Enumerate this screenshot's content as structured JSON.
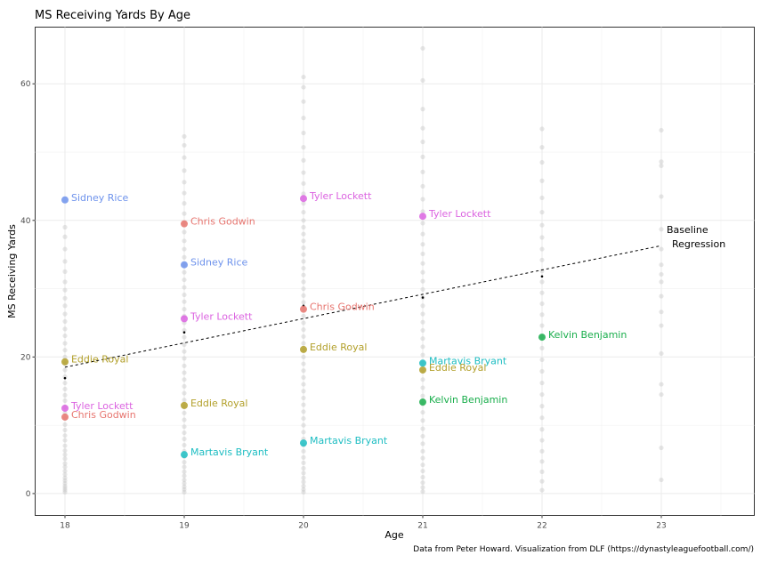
{
  "chart_data": {
    "type": "scatter",
    "title": "MS Receiving Yards By Age",
    "xlabel": "Age",
    "ylabel": "MS Receiving Yards",
    "caption": "Data from Peter Howard. Visualization from DLF (https://dynastyleaguefootball.com/)",
    "xlim": [
      17.75,
      23.78
    ],
    "ylim": [
      -3.2,
      68.3
    ],
    "x_ticks": [
      18,
      19,
      20,
      21,
      22,
      23
    ],
    "y_ticks": [
      0,
      20,
      40,
      60
    ],
    "grid": true,
    "background_population": {
      "color": "#c8c8c8",
      "points": [
        {
          "age": 18,
          "values": [
            0.2,
            0.5,
            0.8,
            1.1,
            1.5,
            1.9,
            2.3,
            2.8,
            3.3,
            3.9,
            4.4,
            5.1,
            5.7,
            6.3,
            7.0,
            7.8,
            8.5,
            9.3,
            10.1,
            11.0,
            11.8,
            12.7,
            13.6,
            14.4,
            15.3,
            16.2,
            17.1,
            18.1,
            19.0,
            20.0,
            21.0,
            22.0,
            23.1,
            24.1,
            25.2,
            26.3,
            27.5,
            28.6,
            29.8,
            31.0,
            32.5,
            34.0,
            35.8,
            37.6,
            39.0
          ]
        },
        {
          "age": 19,
          "values": [
            0.2,
            0.6,
            1.0,
            1.5,
            2.0,
            2.6,
            3.2,
            3.9,
            4.6,
            5.4,
            6.2,
            7.1,
            8.0,
            8.9,
            9.8,
            10.8,
            11.8,
            12.7,
            13.7,
            14.7,
            15.7,
            16.7,
            17.7,
            18.7,
            19.8,
            20.8,
            21.8,
            22.9,
            23.9,
            25.0,
            26.0,
            27.0,
            28.1,
            29.1,
            30.2,
            31.3,
            32.4,
            33.5,
            34.6,
            35.8,
            37.0,
            38.3,
            39.6,
            41.0,
            42.5,
            44.0,
            45.6,
            47.3,
            49.2,
            51.0,
            52.3
          ]
        },
        {
          "age": 20,
          "values": [
            0.2,
            0.6,
            1.1,
            1.7,
            2.3,
            3.0,
            3.7,
            4.5,
            5.3,
            6.2,
            7.1,
            8.0,
            9.0,
            10.0,
            11.0,
            12.0,
            13.0,
            14.0,
            15.0,
            16.0,
            17.0,
            18.0,
            19.0,
            20.0,
            21.0,
            22.0,
            23.0,
            24.0,
            25.0,
            26.0,
            27.0,
            28.0,
            29.0,
            30.0,
            31.0,
            32.0,
            33.0,
            34.0,
            35.0,
            36.0,
            37.0,
            38.0,
            39.0,
            40.0,
            41.2,
            42.5,
            43.9,
            45.4,
            47.0,
            48.8,
            50.7,
            52.8,
            55.0,
            57.4,
            59.5,
            61.0
          ]
        },
        {
          "age": 21,
          "values": [
            0.3,
            0.9,
            1.6,
            2.4,
            3.3,
            4.2,
            5.2,
            6.2,
            7.3,
            8.4,
            9.5,
            10.7,
            11.9,
            13.1,
            14.3,
            15.5,
            16.7,
            17.9,
            19.1,
            20.3,
            21.5,
            22.7,
            23.9,
            25.1,
            26.3,
            27.5,
            28.7,
            29.9,
            31.1,
            32.4,
            33.7,
            35.1,
            36.5,
            38.0,
            39.6,
            41.3,
            43.1,
            45.0,
            47.1,
            49.3,
            51.5,
            53.5,
            56.3,
            60.5,
            65.2
          ]
        },
        {
          "age": 22,
          "values": [
            0.5,
            1.8,
            3.2,
            4.7,
            6.2,
            7.8,
            9.4,
            11.1,
            12.8,
            14.5,
            16.2,
            17.9,
            19.6,
            21.3,
            23.0,
            24.6,
            26.2,
            27.8,
            29.4,
            31.0,
            32.6,
            34.2,
            35.8,
            37.5,
            39.3,
            41.2,
            43.3,
            45.8,
            48.5,
            50.7,
            53.4
          ]
        },
        {
          "age": 23,
          "values": [
            2.0,
            6.7,
            14.5,
            16.0,
            20.5,
            24.6,
            26.6,
            28.9,
            31.0,
            32.1,
            33.5,
            35.8,
            38.7,
            43.5,
            48.0,
            48.6,
            53.2
          ]
        }
      ]
    },
    "age_means": {
      "color": "#000000",
      "points": [
        {
          "age": 18,
          "value": 16.9
        },
        {
          "age": 19,
          "value": 23.6
        },
        {
          "age": 20,
          "value": 27.5
        },
        {
          "age": 21,
          "value": 28.7
        },
        {
          "age": 22,
          "value": 31.8
        }
      ]
    },
    "regression": {
      "label_line1": "Baseline",
      "label_line2": "Regression",
      "x": [
        18,
        23
      ],
      "y": [
        18.5,
        36.3
      ],
      "style": "dashed",
      "color": "#000000"
    },
    "series": [
      {
        "name": "Chris Godwin",
        "color": "#e7756f",
        "points": [
          {
            "age": 18,
            "value": 11.2
          },
          {
            "age": 19,
            "value": 39.5
          },
          {
            "age": 20,
            "value": 27.0
          }
        ]
      },
      {
        "name": "Eddie Royal",
        "color": "#b29f29",
        "points": [
          {
            "age": 18,
            "value": 19.3
          },
          {
            "age": 19,
            "value": 12.9
          },
          {
            "age": 20,
            "value": 21.1
          },
          {
            "age": 21,
            "value": 18.1
          }
        ]
      },
      {
        "name": "Kelvin Benjamin",
        "color": "#1aae4c",
        "points": [
          {
            "age": 21,
            "value": 13.4
          },
          {
            "age": 22,
            "value": 22.9
          }
        ]
      },
      {
        "name": "Martavis Bryant",
        "color": "#1dbdc2",
        "points": [
          {
            "age": 19,
            "value": 5.7
          },
          {
            "age": 20,
            "value": 7.4
          },
          {
            "age": 21,
            "value": 19.1
          }
        ]
      },
      {
        "name": "Sidney Rice",
        "color": "#6e93ec",
        "points": [
          {
            "age": 18,
            "value": 43.0
          },
          {
            "age": 19,
            "value": 33.5
          }
        ]
      },
      {
        "name": "Tyler Lockett",
        "color": "#db63e0",
        "points": [
          {
            "age": 18,
            "value": 12.5
          },
          {
            "age": 19,
            "value": 25.6
          },
          {
            "age": 20,
            "value": 43.2
          },
          {
            "age": 21,
            "value": 40.6
          }
        ]
      }
    ]
  }
}
